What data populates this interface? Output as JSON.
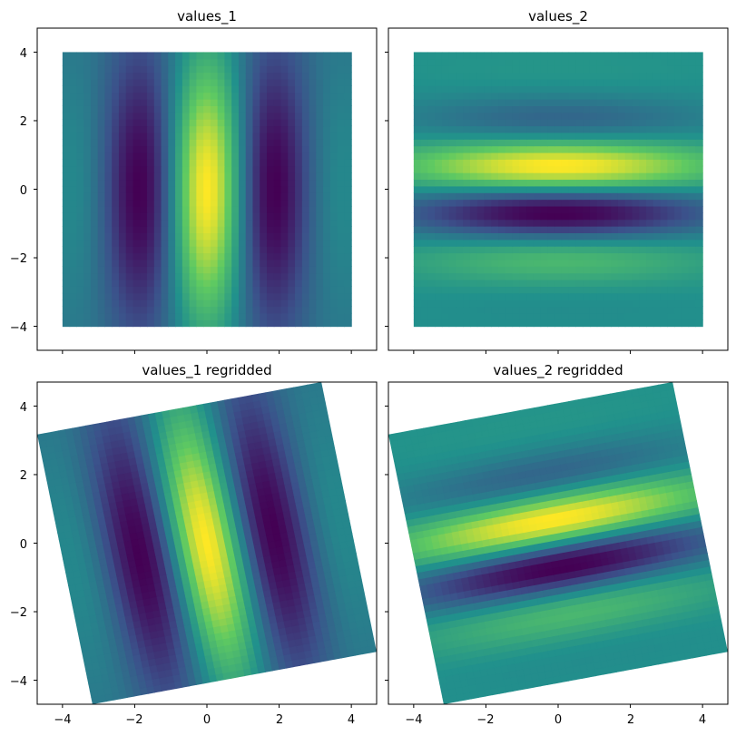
{
  "figure": {
    "background": "#ffffff",
    "frame_color": "#000000"
  },
  "colormap": {
    "name": "viridis",
    "stops": [
      "#440154",
      "#3b528b",
      "#21918c",
      "#5ec962",
      "#fde725"
    ]
  },
  "chart_data": [
    {
      "type": "heatmap",
      "title": "values_1",
      "function": "cos(1.5*x) * exp(-(x^2)/8 - (y^2)/16)",
      "grid_x": [
        -4,
        4
      ],
      "grid_y": [
        -4,
        4
      ],
      "resolution": 41,
      "rotation_deg": 0,
      "xlim": [
        -4.7,
        4.7
      ],
      "ylim": [
        -4.7,
        4.7
      ],
      "xticks": [
        "−4",
        "−2",
        "0",
        "2",
        "4"
      ],
      "yticks": [
        "−4",
        "−2",
        "0",
        "2",
        "4"
      ],
      "show_xticklabels": false,
      "show_yticklabels": true
    },
    {
      "type": "heatmap",
      "title": "values_2",
      "function": "sin(2*y) * exp(-(x^2)/18 - (y^2)/4)",
      "grid_x": [
        -4,
        4
      ],
      "grid_y": [
        -4,
        4
      ],
      "resolution": 41,
      "rotation_deg": 0,
      "xlim": [
        -4.7,
        4.7
      ],
      "ylim": [
        -4.7,
        4.7
      ],
      "xticks": [
        "−4",
        "−2",
        "0",
        "2",
        "4"
      ],
      "yticks": [
        "−4",
        "−2",
        "0",
        "2",
        "4"
      ],
      "show_xticklabels": false,
      "show_yticklabels": false
    },
    {
      "type": "heatmap",
      "title": "values_1 regridded",
      "function": "cos(1.5*x) * exp(-(x^2)/8 - (y^2)/16)",
      "grid_x": [
        -4,
        4
      ],
      "grid_y": [
        -4,
        4
      ],
      "resolution": 41,
      "rotation_deg": 11,
      "xlim": [
        -4.7,
        4.7
      ],
      "ylim": [
        -4.7,
        4.7
      ],
      "xticks": [
        "−4",
        "−2",
        "0",
        "2",
        "4"
      ],
      "yticks": [
        "−4",
        "−2",
        "0",
        "2",
        "4"
      ],
      "show_xticklabels": true,
      "show_yticklabels": true
    },
    {
      "type": "heatmap",
      "title": "values_2 regridded",
      "function": "sin(2*y) * exp(-(x^2)/18 - (y^2)/4)",
      "grid_x": [
        -4,
        4
      ],
      "grid_y": [
        -4,
        4
      ],
      "resolution": 41,
      "rotation_deg": 11,
      "xlim": [
        -4.7,
        4.7
      ],
      "ylim": [
        -4.7,
        4.7
      ],
      "xticks": [
        "−4",
        "−2",
        "0",
        "2",
        "4"
      ],
      "yticks": [
        "−4",
        "−2",
        "0",
        "2",
        "4"
      ],
      "show_xticklabels": true,
      "show_yticklabels": false
    }
  ]
}
